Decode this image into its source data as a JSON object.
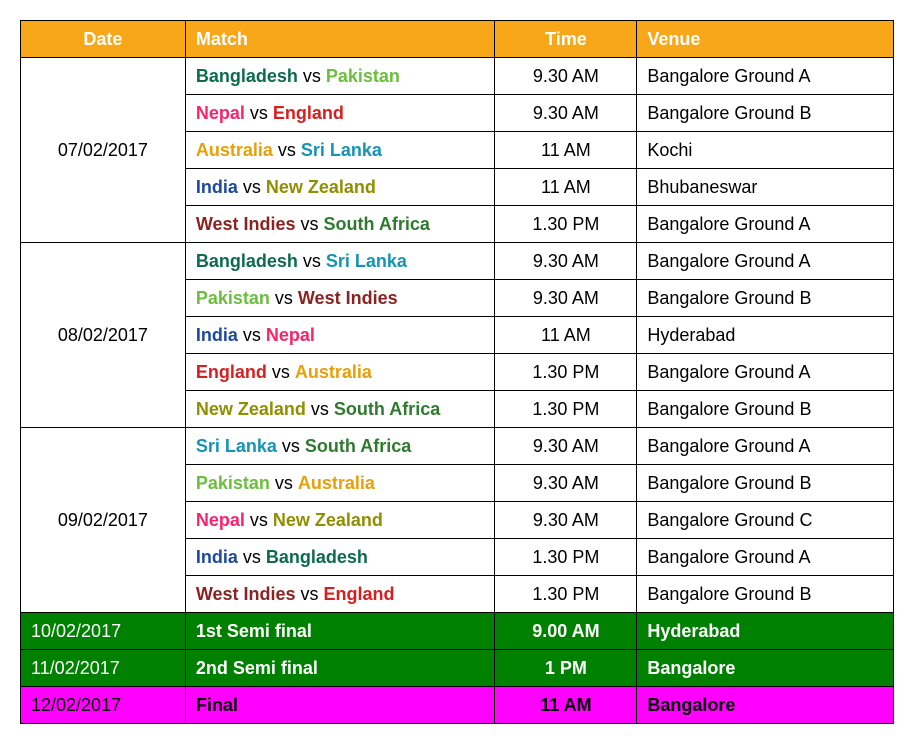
{
  "headers": {
    "date": "Date",
    "match": "Match",
    "time": "Time",
    "venue": "Venue"
  },
  "team_colors": {
    "Bangladesh": "#0d6b4d",
    "Pakistan": "#6bbf3e",
    "Nepal": "#f7256e",
    "England": "#d62020",
    "Australia": "#e8a00a",
    "Sri Lanka": "#1693b5",
    "India": "#1d4a9e",
    "New Zealand": "#8f8f00",
    "West Indies": "#8b2323",
    "South Africa": "#2f7a2f"
  },
  "groups": [
    {
      "date": "07/02/2017",
      "rows": [
        {
          "team1": "Bangladesh",
          "team2": "Pakistan",
          "time": "9.30 AM",
          "venue": "Bangalore Ground A"
        },
        {
          "team1": "Nepal",
          "team2": "England",
          "time": "9.30 AM",
          "venue": "Bangalore Ground B"
        },
        {
          "team1": "Australia",
          "team2": "Sri Lanka",
          "time": "11 AM",
          "venue": "Kochi"
        },
        {
          "team1": "India",
          "team2": "New Zealand",
          "time": "11 AM",
          "venue": "Bhubaneswar"
        },
        {
          "team1": "West Indies",
          "team2": "South Africa",
          "time": "1.30 PM",
          "venue": "Bangalore Ground A"
        }
      ]
    },
    {
      "date": "08/02/2017",
      "rows": [
        {
          "team1": "Bangladesh",
          "team2": "Sri Lanka",
          "time": "9.30 AM",
          "venue": "Bangalore Ground A"
        },
        {
          "team1": "Pakistan",
          "team2": "West Indies",
          "time": "9.30 AM",
          "venue": "Bangalore Ground B"
        },
        {
          "team1": "India",
          "team2": "Nepal",
          "time": "11 AM",
          "venue": "Hyderabad"
        },
        {
          "team1": "England",
          "team2": "Australia",
          "time": "1.30 PM",
          "venue": "Bangalore Ground A"
        },
        {
          "team1": "New Zealand",
          "team2": "South Africa",
          "time": "1.30 PM",
          "venue": "Bangalore Ground B"
        }
      ]
    },
    {
      "date": "09/02/2017",
      "rows": [
        {
          "team1": "Sri Lanka",
          "team2": "South Africa",
          "time": "9.30 AM",
          "venue": "Bangalore Ground A"
        },
        {
          "team1": "Pakistan",
          "team2": "Australia",
          "time": "9.30 AM",
          "venue": "Bangalore Ground B"
        },
        {
          "team1": "Nepal",
          "team2": "New Zealand",
          "time": "9.30 AM",
          "venue": "Bangalore Ground C"
        },
        {
          "team1": "India",
          "team2": "Bangladesh",
          "time": "1.30 PM",
          "venue": "Bangalore Ground A"
        },
        {
          "team1": "West Indies",
          "team2": "England",
          "time": "1.30 PM",
          "venue": "Bangalore Ground B"
        }
      ]
    }
  ],
  "finals": [
    {
      "date": "10/02/2017",
      "match": "1st Semi final",
      "time": "9.00 AM",
      "venue": "Hyderabad",
      "rowClass": "green-row"
    },
    {
      "date": "11/02/2017",
      "match": "2nd Semi final",
      "time": "1 PM",
      "venue": "Bangalore",
      "rowClass": "green-row"
    },
    {
      "date": "12/02/2017",
      "match": "Final",
      "time": "11 AM",
      "venue": "Bangalore",
      "rowClass": "magenta-row"
    }
  ],
  "vs": "vs"
}
